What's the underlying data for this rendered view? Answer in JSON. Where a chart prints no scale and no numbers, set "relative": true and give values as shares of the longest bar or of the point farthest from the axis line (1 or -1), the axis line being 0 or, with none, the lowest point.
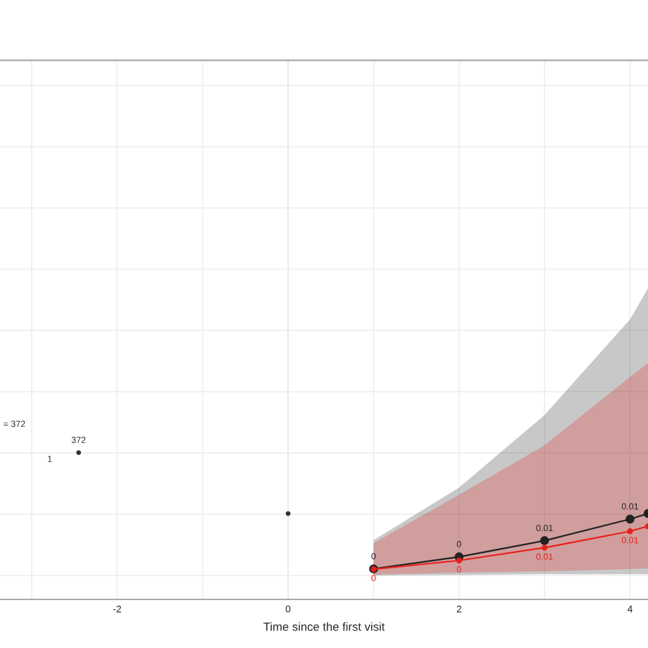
{
  "chart_data": {
    "type": "line",
    "xlabel": "Time since the first visit",
    "relative": true,
    "xlim": [
      -3.37,
      4.21
    ],
    "xticks": [
      {
        "value": -3,
        "label": null
      },
      -2,
      {
        "value": -1,
        "label": null
      },
      0,
      {
        "value": 1,
        "label": null
      },
      2,
      {
        "value": 3,
        "label": null
      },
      4
    ],
    "series": [
      {
        "color": "#222222",
        "x": [
          1,
          2,
          3,
          4,
          4.21
        ],
        "values": [
          0.208,
          0.29,
          0.4,
          0.547,
          0.585
        ],
        "lower": [
          0.163,
          0.167,
          0.172,
          0.172,
          0.172
        ],
        "upper": [
          0.403,
          0.761,
          1.256,
          1.907,
          2.119
        ]
      },
      {
        "color": "#e8201c",
        "x": [
          1,
          2,
          3,
          4,
          4.21
        ],
        "values": [
          0.206,
          0.265,
          0.352,
          0.464,
          0.498
        ],
        "lower": [
          0.169,
          0.182,
          0.191,
          0.206,
          0.212
        ],
        "upper": [
          0.383,
          0.712,
          1.049,
          1.515,
          1.61
        ]
      },
      {
        "type": "scatter",
        "color": "#333333",
        "x": [
          -2.45,
          0
        ],
        "values": [
          1.0,
          0.585
        ]
      }
    ],
    "annotations": [
      "= 372",
      "1",
      "372",
      "0",
      "0",
      "0.01",
      "0.01",
      "0",
      "0",
      "0.01",
      "0.01"
    ],
    "ref_lines": [
      {
        "axis": "x",
        "value": 0,
        "color": "#f4a0a0",
        "line_style": "dashed"
      }
    ],
    "grid": true,
    "marker": "circle",
    "tick_labels": "x"
  }
}
